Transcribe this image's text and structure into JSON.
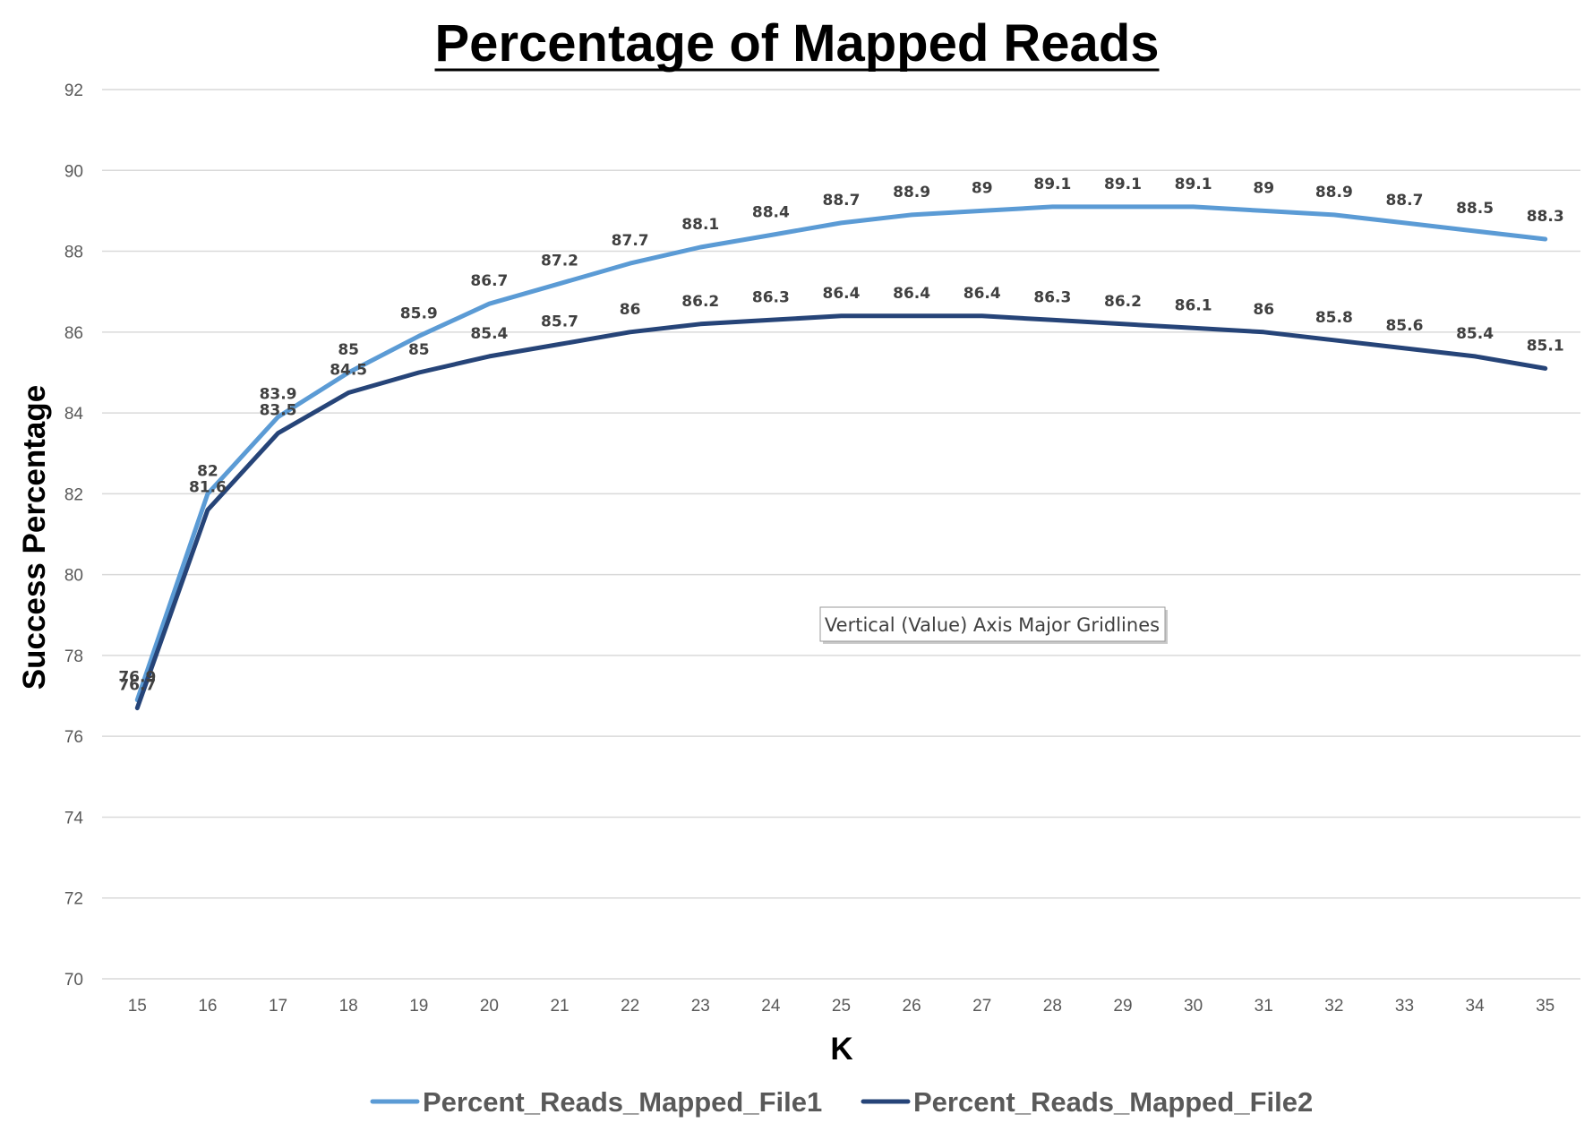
{
  "chart_data": {
    "type": "line",
    "title": "Percentage of Mapped Reads",
    "xlabel": "K",
    "ylabel": "Success Percentage",
    "ylim": [
      70,
      92
    ],
    "yticks": [
      70,
      72,
      74,
      76,
      78,
      80,
      82,
      84,
      86,
      88,
      90,
      92
    ],
    "grid": true,
    "legend_position": "bottom",
    "categories": [
      "15",
      "16",
      "17",
      "18",
      "19",
      "20",
      "21",
      "22",
      "23",
      "24",
      "25",
      "26",
      "27",
      "28",
      "29",
      "30",
      "31",
      "32",
      "33",
      "34",
      "35"
    ],
    "series": [
      {
        "name": "Percent_Reads_Mapped_File1",
        "color": "#5b9bd5",
        "values": [
          76.9,
          82,
          83.9,
          85,
          85.9,
          86.7,
          87.2,
          87.7,
          88.1,
          88.4,
          88.7,
          88.9,
          89,
          89.1,
          89.1,
          89.1,
          89,
          88.9,
          88.7,
          88.5,
          88.3
        ]
      },
      {
        "name": "Percent_Reads_Mapped_File2",
        "color": "#264478",
        "values": [
          76.7,
          81.6,
          83.5,
          84.5,
          85,
          85.4,
          85.7,
          86,
          86.2,
          86.3,
          86.4,
          86.4,
          86.4,
          86.3,
          86.2,
          86.1,
          86,
          85.8,
          85.6,
          85.4,
          85.1
        ]
      }
    ],
    "tooltip": "Vertical (Value) Axis Major Gridlines"
  }
}
